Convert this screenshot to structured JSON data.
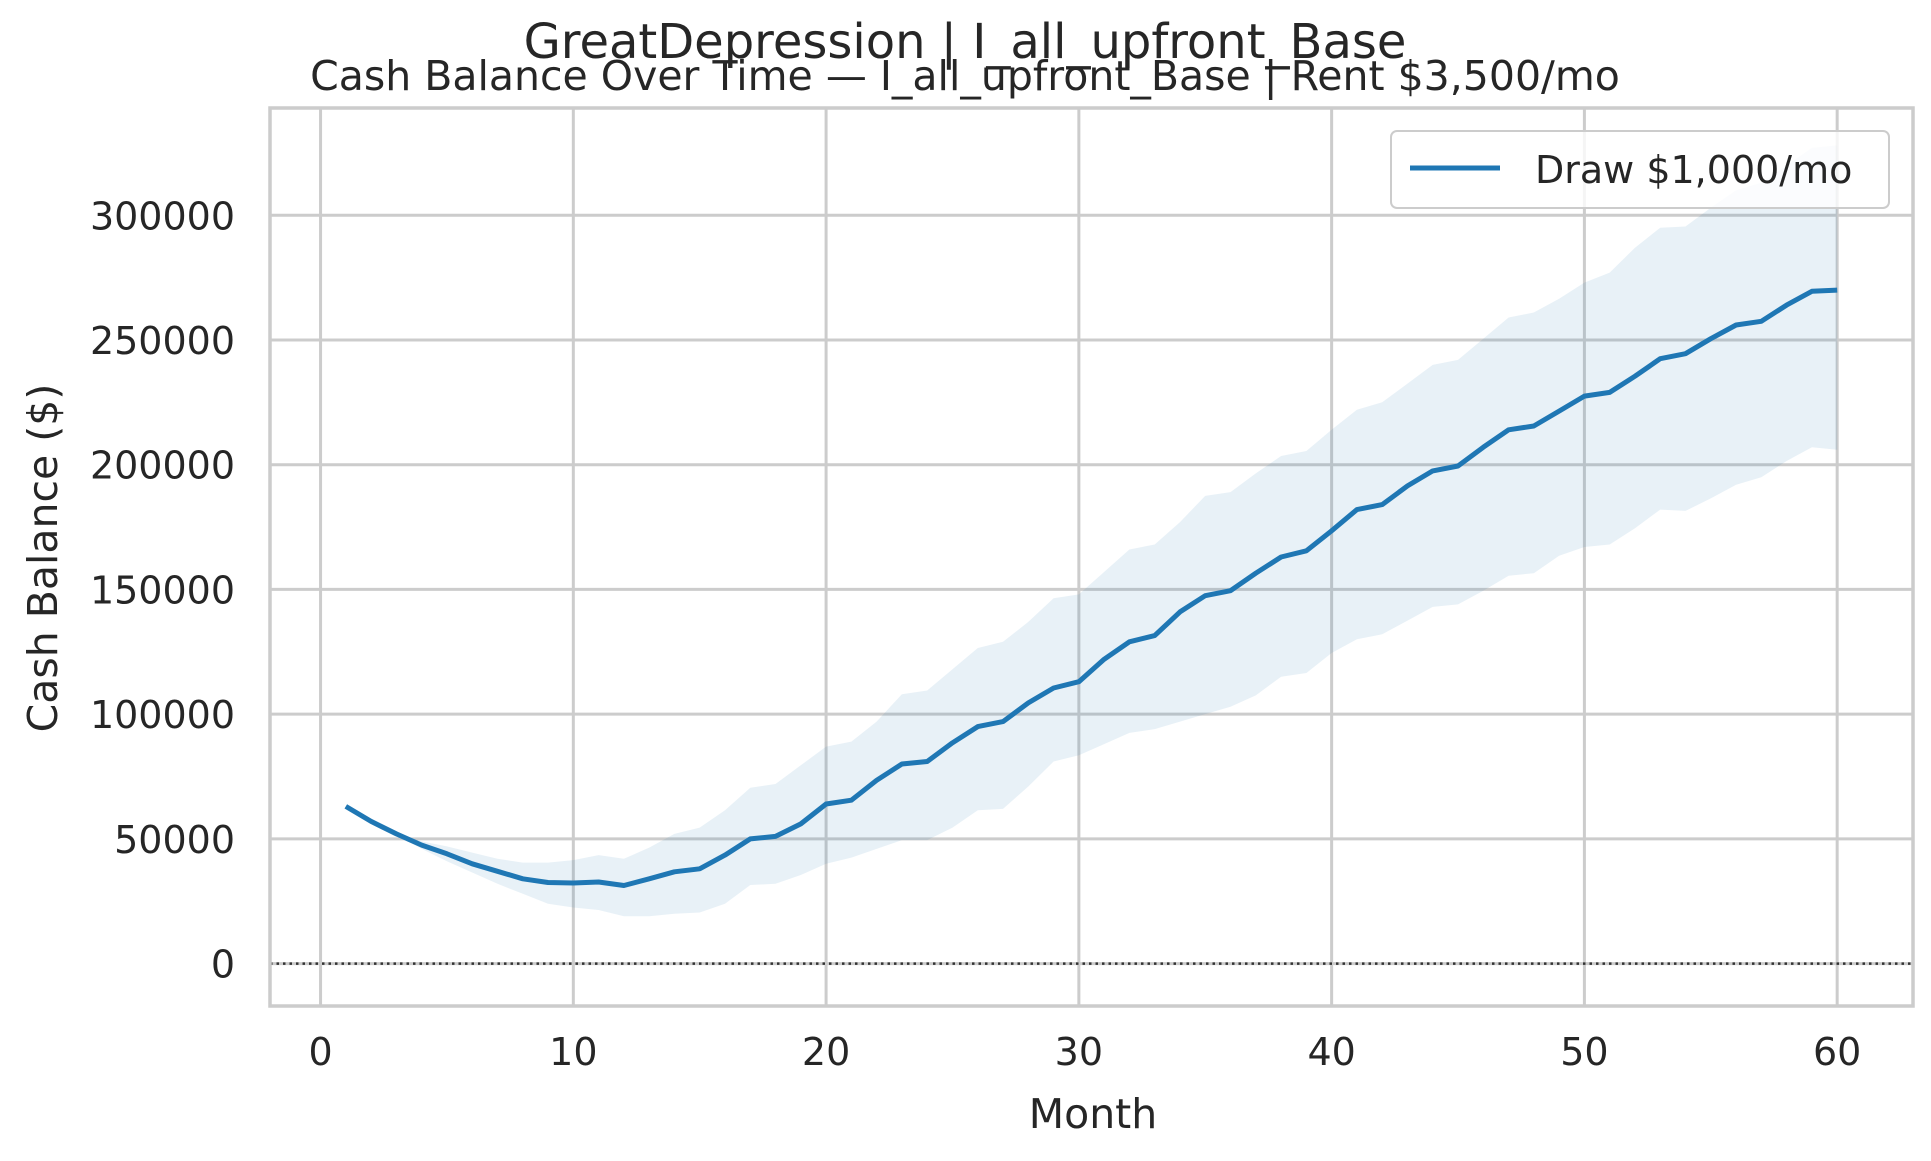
{
  "figure": {
    "suptitle": "GreatDepression | I_all_upfront_Base"
  },
  "chart_data": {
    "type": "line",
    "title": "Cash Balance Over Time — I_all_upfront_Base | Rent $3,500/mo",
    "xlabel": "Month",
    "ylabel": "Cash Balance ($)",
    "xlim": [
      -2,
      63
    ],
    "ylim": [
      -17000,
      343000
    ],
    "xticks": [
      0,
      10,
      20,
      30,
      40,
      50,
      60
    ],
    "yticks": [
      0,
      50000,
      100000,
      150000,
      200000,
      250000,
      300000
    ],
    "xtick_labels": [
      "0",
      "10",
      "20",
      "30",
      "40",
      "50",
      "60"
    ],
    "ytick_labels": [
      "0",
      "50000",
      "100000",
      "150000",
      "200000",
      "250000",
      "300000"
    ],
    "grid": true,
    "legend_position": "top-right",
    "reference_line": {
      "y": 0,
      "style": "dotted",
      "color": "#333333"
    },
    "colors": {
      "line": "#1f77b4",
      "band": "#1f77b4",
      "grid": "#cccccc",
      "spine": "#cccccc"
    },
    "series": [
      {
        "name": "Draw $1,000/mo",
        "x": [
          1,
          2,
          3,
          4,
          5,
          6,
          7,
          8,
          9,
          10,
          11,
          12,
          13,
          14,
          15,
          16,
          17,
          18,
          19,
          20,
          21,
          22,
          23,
          24,
          25,
          26,
          27,
          28,
          29,
          30,
          31,
          32,
          33,
          34,
          35,
          36,
          37,
          38,
          39,
          40,
          41,
          42,
          43,
          44,
          45,
          46,
          47,
          48,
          49,
          50,
          51,
          52,
          53,
          54,
          55,
          56,
          57,
          58,
          59,
          60
        ],
        "y": [
          63000,
          57000,
          52000,
          47500,
          44000,
          40000,
          37000,
          34000,
          32500,
          32300,
          32700,
          31300,
          34000,
          36800,
          38000,
          43500,
          50000,
          51000,
          56000,
          64000,
          65500,
          73500,
          80000,
          81000,
          88500,
          95000,
          97000,
          104500,
          110500,
          113000,
          122000,
          129000,
          131500,
          141000,
          147500,
          149500,
          156500,
          163000,
          165500,
          173500,
          182000,
          184000,
          191500,
          197500,
          199500,
          207000,
          214000,
          215500,
          221500,
          227500,
          229000,
          235500,
          242500,
          244500,
          250500,
          256000,
          257500,
          264000,
          269500,
          270000
        ],
        "lower": [
          63000,
          57000,
          51500,
          46000,
          41000,
          36500,
          32000,
          28000,
          24000,
          22500,
          21500,
          19000,
          19000,
          20000,
          20500,
          24000,
          31500,
          32000,
          35500,
          40000,
          42500,
          46000,
          49500,
          49500,
          54500,
          61500,
          62000,
          71000,
          81000,
          83500,
          88000,
          92500,
          94000,
          97000,
          100000,
          103000,
          107500,
          115000,
          116500,
          124500,
          130000,
          132000,
          137500,
          143000,
          144000,
          149500,
          155500,
          156500,
          163500,
          167000,
          168000,
          174500,
          182000,
          181500,
          186500,
          192000,
          195000,
          201500,
          207000,
          206000
        ],
        "upper": [
          63000,
          57000,
          52500,
          49000,
          47000,
          44500,
          42000,
          40500,
          40500,
          41500,
          43500,
          42000,
          46500,
          52000,
          54500,
          61500,
          70500,
          72000,
          79500,
          87000,
          89000,
          97000,
          108000,
          109500,
          118000,
          126500,
          129000,
          137000,
          146500,
          148000,
          157000,
          166000,
          168000,
          177000,
          187500,
          189000,
          196500,
          203500,
          205500,
          214000,
          222000,
          225000,
          232500,
          240000,
          242000,
          250500,
          259000,
          261000,
          266500,
          273000,
          277000,
          287000,
          295000,
          295500,
          303000,
          310000,
          313000,
          320000,
          327000,
          328000
        ]
      }
    ]
  }
}
